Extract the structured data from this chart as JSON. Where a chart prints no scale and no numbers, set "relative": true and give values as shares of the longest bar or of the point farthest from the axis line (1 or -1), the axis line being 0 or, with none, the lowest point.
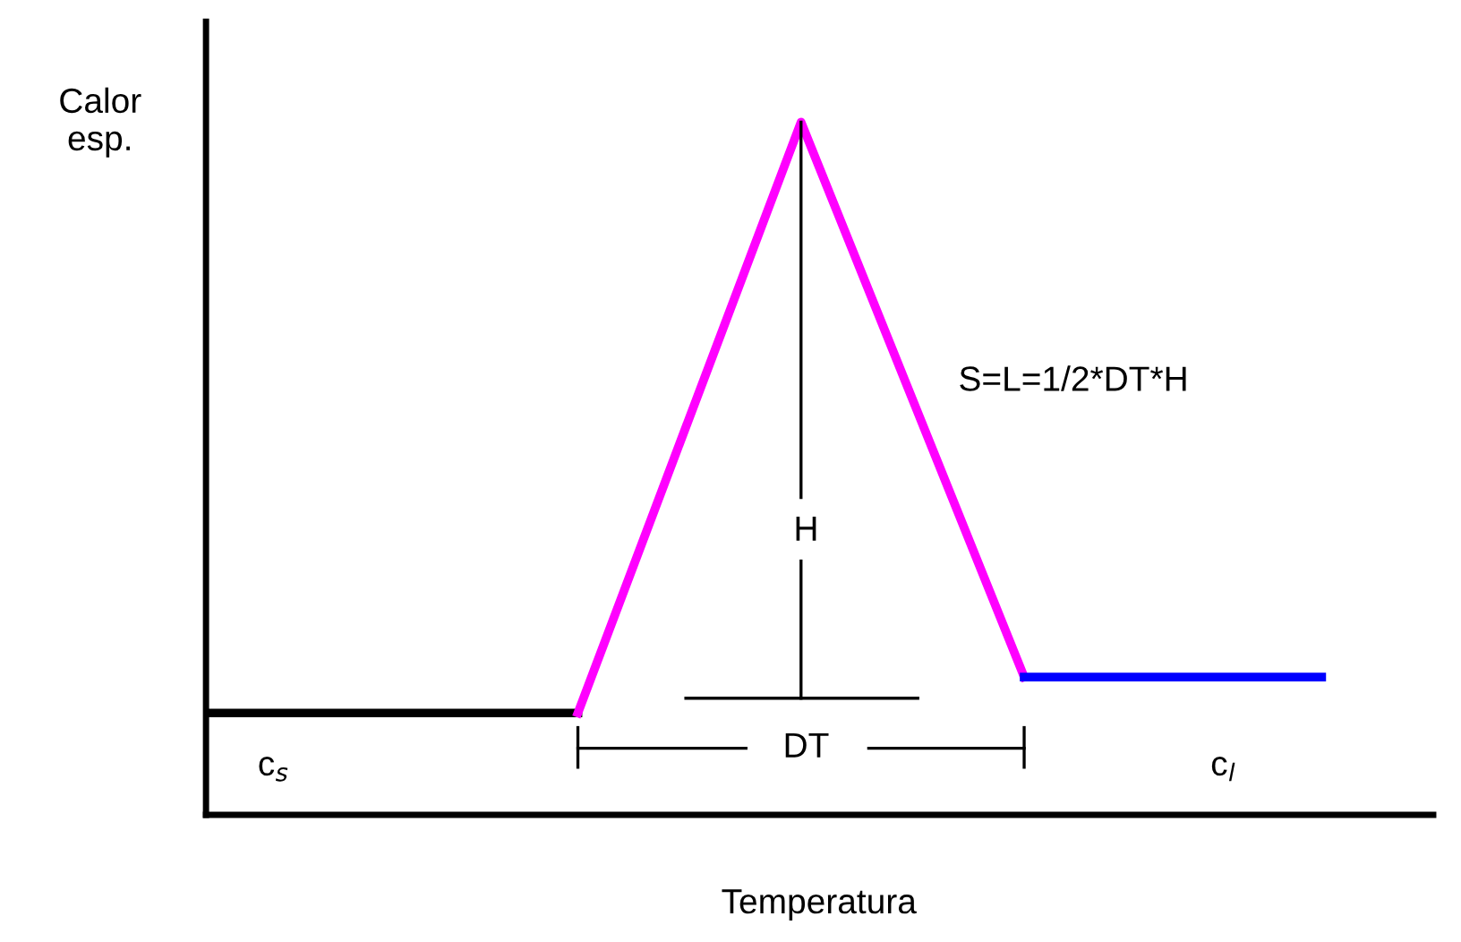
{
  "chart_data": {
    "type": "line",
    "relative": true,
    "xlabel": "Temperatura",
    "ylabel": "Calor\nesp.",
    "line_style": "solid",
    "categories": [
      null,
      null,
      null,
      null,
      null,
      null,
      null,
      null,
      null,
      null,
      null,
      null,
      null,
      null,
      null,
      null
    ],
    "series": [
      {
        "color": "#000000",
        "values": [
          0.147,
          null,
          null,
          null,
          null,
          0.147,
          null,
          null,
          null,
          null,
          null,
          null,
          null,
          null,
          null,
          null
        ]
      },
      {
        "color": "#ff00ff",
        "values": [
          null,
          null,
          null,
          null,
          null,
          0.147,
          null,
          null,
          1,
          null,
          null,
          0.199,
          null,
          null,
          null,
          null
        ]
      },
      {
        "color": "#0000ff",
        "values": [
          null,
          null,
          null,
          null,
          null,
          null,
          null,
          null,
          null,
          null,
          null,
          0.199,
          null,
          null,
          null,
          0.199
        ]
      }
    ],
    "annotations": [
      "H",
      "DT",
      "S=L=1/2*DT*H",
      "c$_{s}$",
      "c$_{l}$"
    ]
  }
}
